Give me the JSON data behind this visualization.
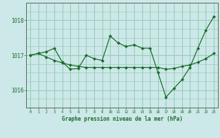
{
  "title": "Graphe pression niveau de la mer (hPa)",
  "bg_color": "#cce8e8",
  "grid_color": "#99ccbb",
  "line_color": "#1a6b2a",
  "marker_color": "#1a6b2a",
  "xlim": [
    -0.5,
    23.5
  ],
  "ylim": [
    1015.5,
    1018.5
  ],
  "yticks": [
    1016,
    1017,
    1018
  ],
  "xticks": [
    0,
    1,
    2,
    3,
    4,
    5,
    6,
    7,
    8,
    9,
    10,
    11,
    12,
    13,
    14,
    15,
    16,
    17,
    18,
    19,
    20,
    21,
    22,
    23
  ],
  "series1_x": [
    0,
    1,
    2,
    3,
    4,
    5,
    6,
    7,
    8,
    9,
    10,
    11,
    12,
    13,
    14,
    15,
    16,
    17,
    18,
    19,
    20,
    21,
    22,
    23
  ],
  "series1_y": [
    1017.0,
    1017.05,
    1016.95,
    1016.85,
    1016.78,
    1016.72,
    1016.68,
    1016.65,
    1016.65,
    1016.65,
    1016.65,
    1016.65,
    1016.65,
    1016.65,
    1016.65,
    1016.65,
    1016.65,
    1016.6,
    1016.62,
    1016.68,
    1016.72,
    1016.8,
    1016.9,
    1017.05
  ],
  "series2_x": [
    0,
    1,
    2,
    3,
    4,
    5,
    6,
    7,
    8,
    9,
    10,
    11,
    12,
    13,
    14,
    15,
    16,
    17,
    18,
    19,
    20,
    21,
    22,
    23
  ],
  "series2_y": [
    1017.0,
    1017.05,
    1017.1,
    1017.2,
    1016.8,
    1016.6,
    1016.62,
    1017.0,
    1016.9,
    1016.85,
    1017.55,
    1017.35,
    1017.25,
    1017.3,
    1017.2,
    1017.2,
    1016.5,
    1015.8,
    1016.05,
    1016.3,
    1016.65,
    1017.2,
    1017.72,
    1018.1
  ]
}
